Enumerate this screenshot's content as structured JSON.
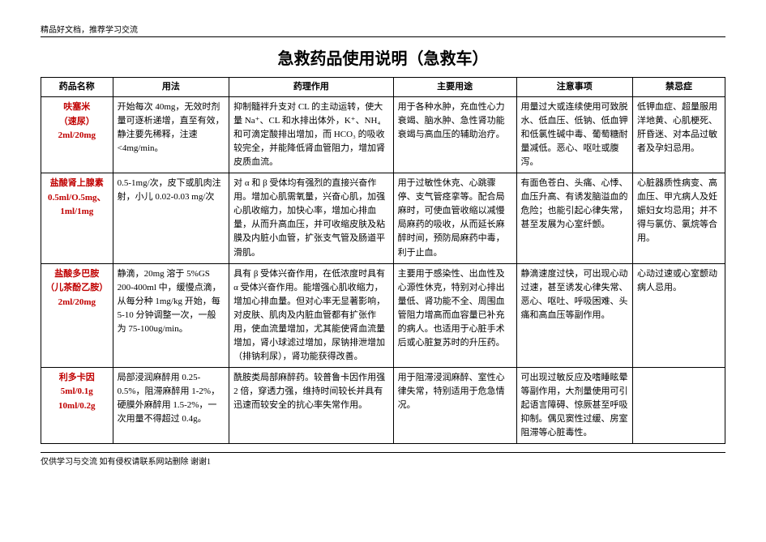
{
  "topNote": "精品好文档，推荐学习交流",
  "title": "急救药品使用说明（急救车）",
  "bottomNote": "仅供学习与交流  如有侵权请联系网站删除  谢谢1",
  "headers": [
    "药品名称",
    "用法",
    "药理作用",
    "主要用途",
    "注意事项",
    "禁忌症"
  ],
  "rows": [
    {
      "name": "呋塞米\n（速尿）\n2ml/20mg",
      "usage": "开始每次 40mg，无效时剂量可逐析递增，直至有效，静注要先稀释，注速<4mg/min。",
      "pharm": "抑制髓袢升支对 CL 的主动运转，使大量 Na⁺、CL 和水排出体外，K⁺、NH₄ 和可滴定酸排出增加，而 HCO₃ 的吸收较完全，并能降低肾血管阻力，增加肾皮质血流。",
      "use": "用于各种水肿，充血性心力衰竭、脑水肿、急性肾功能衰竭与高血压的辅助治疗。",
      "caution": "用量过大或连续使用可致脱水、低血压、低钠、低血钾和低氯性碱中毒、葡萄糖耐量减低。恶心、呕吐或腹泻。",
      "contra": "低钾血症、超量服用洋地黄、心肌梗死、肝昏迷、对本品过敏者及孕妇忌用。"
    },
    {
      "name": "盐酸肾上腺素\n0.5ml/O.5mg、\n1ml/1mg",
      "usage": "0.5-1mg/次，皮下或肌肉注射，小儿 0.02-0.03 mg/次",
      "pharm": "对 α 和 β 受体均有强烈的直接兴奋作用。增加心肌需氧量，兴奋心肌，加强心肌收缩力，加快心率，增加心排血量，从而升高血压，并可收缩皮肤及粘膜及内脏小血管，扩张支气管及肠道平滑肌。",
      "use": "用于过敏性休克、心跳骤停、支气管痉挛等。配合局麻时，可使血管收缩以减慢局麻药的吸收，从而延长麻醉时间，预防局麻药中毒，利于止血。",
      "caution": "有面色苍白、头痛、心悸、血压升高、有诱发脑溢血的危险；也能引起心律失常，甚至发展为心室纤颤。",
      "contra": "心脏器质性病变、高血压、甲亢病人及妊娠妇女均忌用；并不得与氯仿、氯烷等合用。"
    },
    {
      "name": "盐酸多巴胺\n（儿茶酚乙胺）\n2ml/20mg",
      "usage": "静滴，20mg 溶于 5%GS 200-400ml 中，缓慢点滴，从每分种 1mg/kg 开始，每 5-10 分钟调整一次，一般为 75-100ug/min。",
      "pharm": "具有 β 受体兴奋作用，在低浓度时具有 α 受体兴奋作用。能增强心肌收缩力，增加心排血量。但对心率无显著影响，对皮肤、肌肉及内脏血管都有扩张作用，使血流量增加，尤其能使肾血流量增加，肾小球滤过增加，尿钠排泄增加（排钠利尿），肾功能获得改善。",
      "use": "主要用于感染性、出血性及心源性休克，特别对心排出量低、肾功能不全、周围血管阻力增高而血容量已补充的病人。也适用于心脏手术后或心脏复苏时的升压药。",
      "caution": "静滴速度过快，可出现心动过速，甚至诱发心律失常、恶心、呕吐、呼吸困难、头痛和高血压等副作用。",
      "contra": "心动过速或心室颤动病人忌用。"
    },
    {
      "name": "利多卡因\n5ml/0.1g\n10ml/0.2g",
      "usage": "局部浸润麻醉用 0.25-0.5%，阻滞麻醉用 1-2%，硬膜外麻醉用 1.5-2%，一次用量不得超过 0.4g。",
      "pharm": "酰胺类局部麻醉药。较普鲁卡因作用强 2 倍，穿透力强，维持时间较长并具有迅速而较安全的抗心率失常作用。",
      "use": "用于阻滞浸润麻醉、室性心律失常，特别适用于危急情况。",
      "caution": "可出现过敏反应及嗜睡眩晕等副作用，大剂量使用可引起语言障碍、惊厥甚至呼吸抑制。偶见窦性过缓、房室阻滞等心脏毒性。",
      "contra": ""
    }
  ]
}
